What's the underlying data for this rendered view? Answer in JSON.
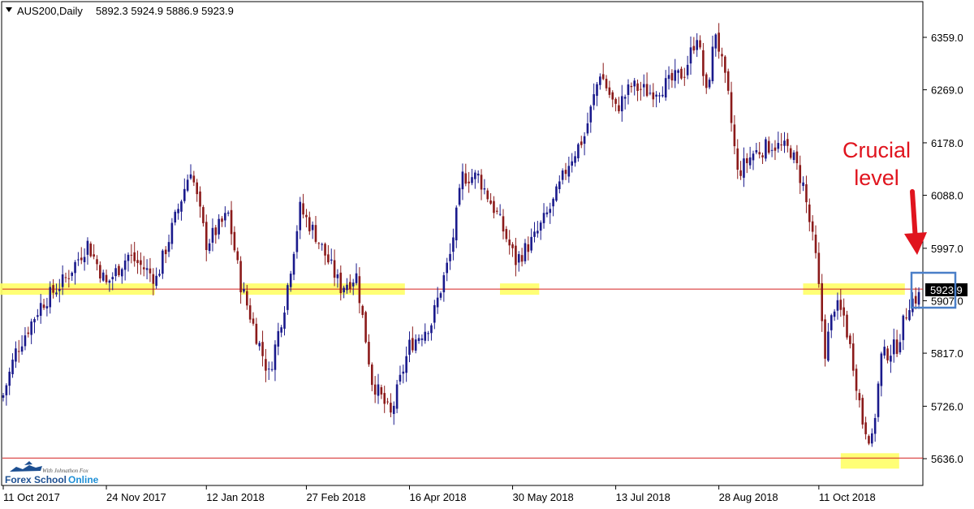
{
  "header": {
    "symbol": "AUS200,Daily",
    "ohlc": "5892.3 5924.9 5886.9 5923.9"
  },
  "annotation": {
    "line1": "Crucial",
    "line2": "level"
  },
  "current_price_label": "5923.9",
  "logo": {
    "tagline": "With Johnathon Fox",
    "name_part1": "Forex School",
    "name_part2": "Online"
  },
  "colors": {
    "bull": "#1a1a8c",
    "bear": "#8b1a1a",
    "level_line": "#d42020",
    "zone": "#ffff66",
    "annotation": "#e0141e",
    "highlight_box": "#4a7fc8"
  },
  "chart_data": {
    "type": "candlestick",
    "title": "AUS200,Daily",
    "y_ticks": [
      6359.0,
      6269.0,
      6178.0,
      6088.0,
      5997.0,
      5907.0,
      5817.0,
      5726.0,
      5636.0
    ],
    "y_tick_labels": [
      "6359.0",
      "6269.0",
      "6178.0",
      "6088.0",
      "5997.0",
      "5907.0",
      "5817.0",
      "5726.0",
      "5636.0"
    ],
    "ylim": [
      5610,
      6385
    ],
    "x_tick_labels": [
      "11 Oct 2017",
      "24 Nov 2017",
      "12 Jan 2018",
      "27 Feb 2018",
      "16 Apr 2018",
      "30 May 2018",
      "13 Jul 2018",
      "28 Aug 2018",
      "11 Oct 2018"
    ],
    "horizontal_levels": [
      5927,
      5637
    ],
    "last_price": 5923.9,
    "waypoints": [
      [
        0,
        5745
      ],
      [
        4,
        5820
      ],
      [
        12,
        5900
      ],
      [
        20,
        5945
      ],
      [
        27,
        6005
      ],
      [
        33,
        5935
      ],
      [
        40,
        5985
      ],
      [
        49,
        5945
      ],
      [
        56,
        6065
      ],
      [
        60,
        6135
      ],
      [
        65,
        6005
      ],
      [
        72,
        6055
      ],
      [
        76,
        5935
      ],
      [
        80,
        5865
      ],
      [
        85,
        5780
      ],
      [
        90,
        5900
      ],
      [
        95,
        6065
      ],
      [
        100,
        6020
      ],
      [
        108,
        5930
      ],
      [
        113,
        5950
      ],
      [
        118,
        5770
      ],
      [
        124,
        5710
      ],
      [
        130,
        5830
      ],
      [
        137,
        5870
      ],
      [
        143,
        5985
      ],
      [
        147,
        6120
      ],
      [
        152,
        6120
      ],
      [
        158,
        6055
      ],
      [
        164,
        5975
      ],
      [
        170,
        6015
      ],
      [
        176,
        6075
      ],
      [
        181,
        6145
      ],
      [
        186,
        6190
      ],
      [
        191,
        6300
      ],
      [
        196,
        6235
      ],
      [
        201,
        6275
      ],
      [
        207,
        6265
      ],
      [
        213,
        6280
      ],
      [
        218,
        6300
      ],
      [
        222,
        6365
      ],
      [
        225,
        6260
      ],
      [
        228,
        6370
      ],
      [
        232,
        6255
      ],
      [
        235,
        6125
      ],
      [
        240,
        6160
      ],
      [
        246,
        6175
      ],
      [
        252,
        6165
      ],
      [
        256,
        6105
      ],
      [
        260,
        5980
      ],
      [
        263,
        5820
      ],
      [
        266,
        5900
      ],
      [
        269,
        5880
      ],
      [
        272,
        5800
      ],
      [
        275,
        5700
      ],
      [
        278,
        5665
      ],
      [
        281,
        5810
      ],
      [
        286,
        5830
      ],
      [
        290,
        5905
      ],
      [
        293,
        5915
      ]
    ]
  }
}
